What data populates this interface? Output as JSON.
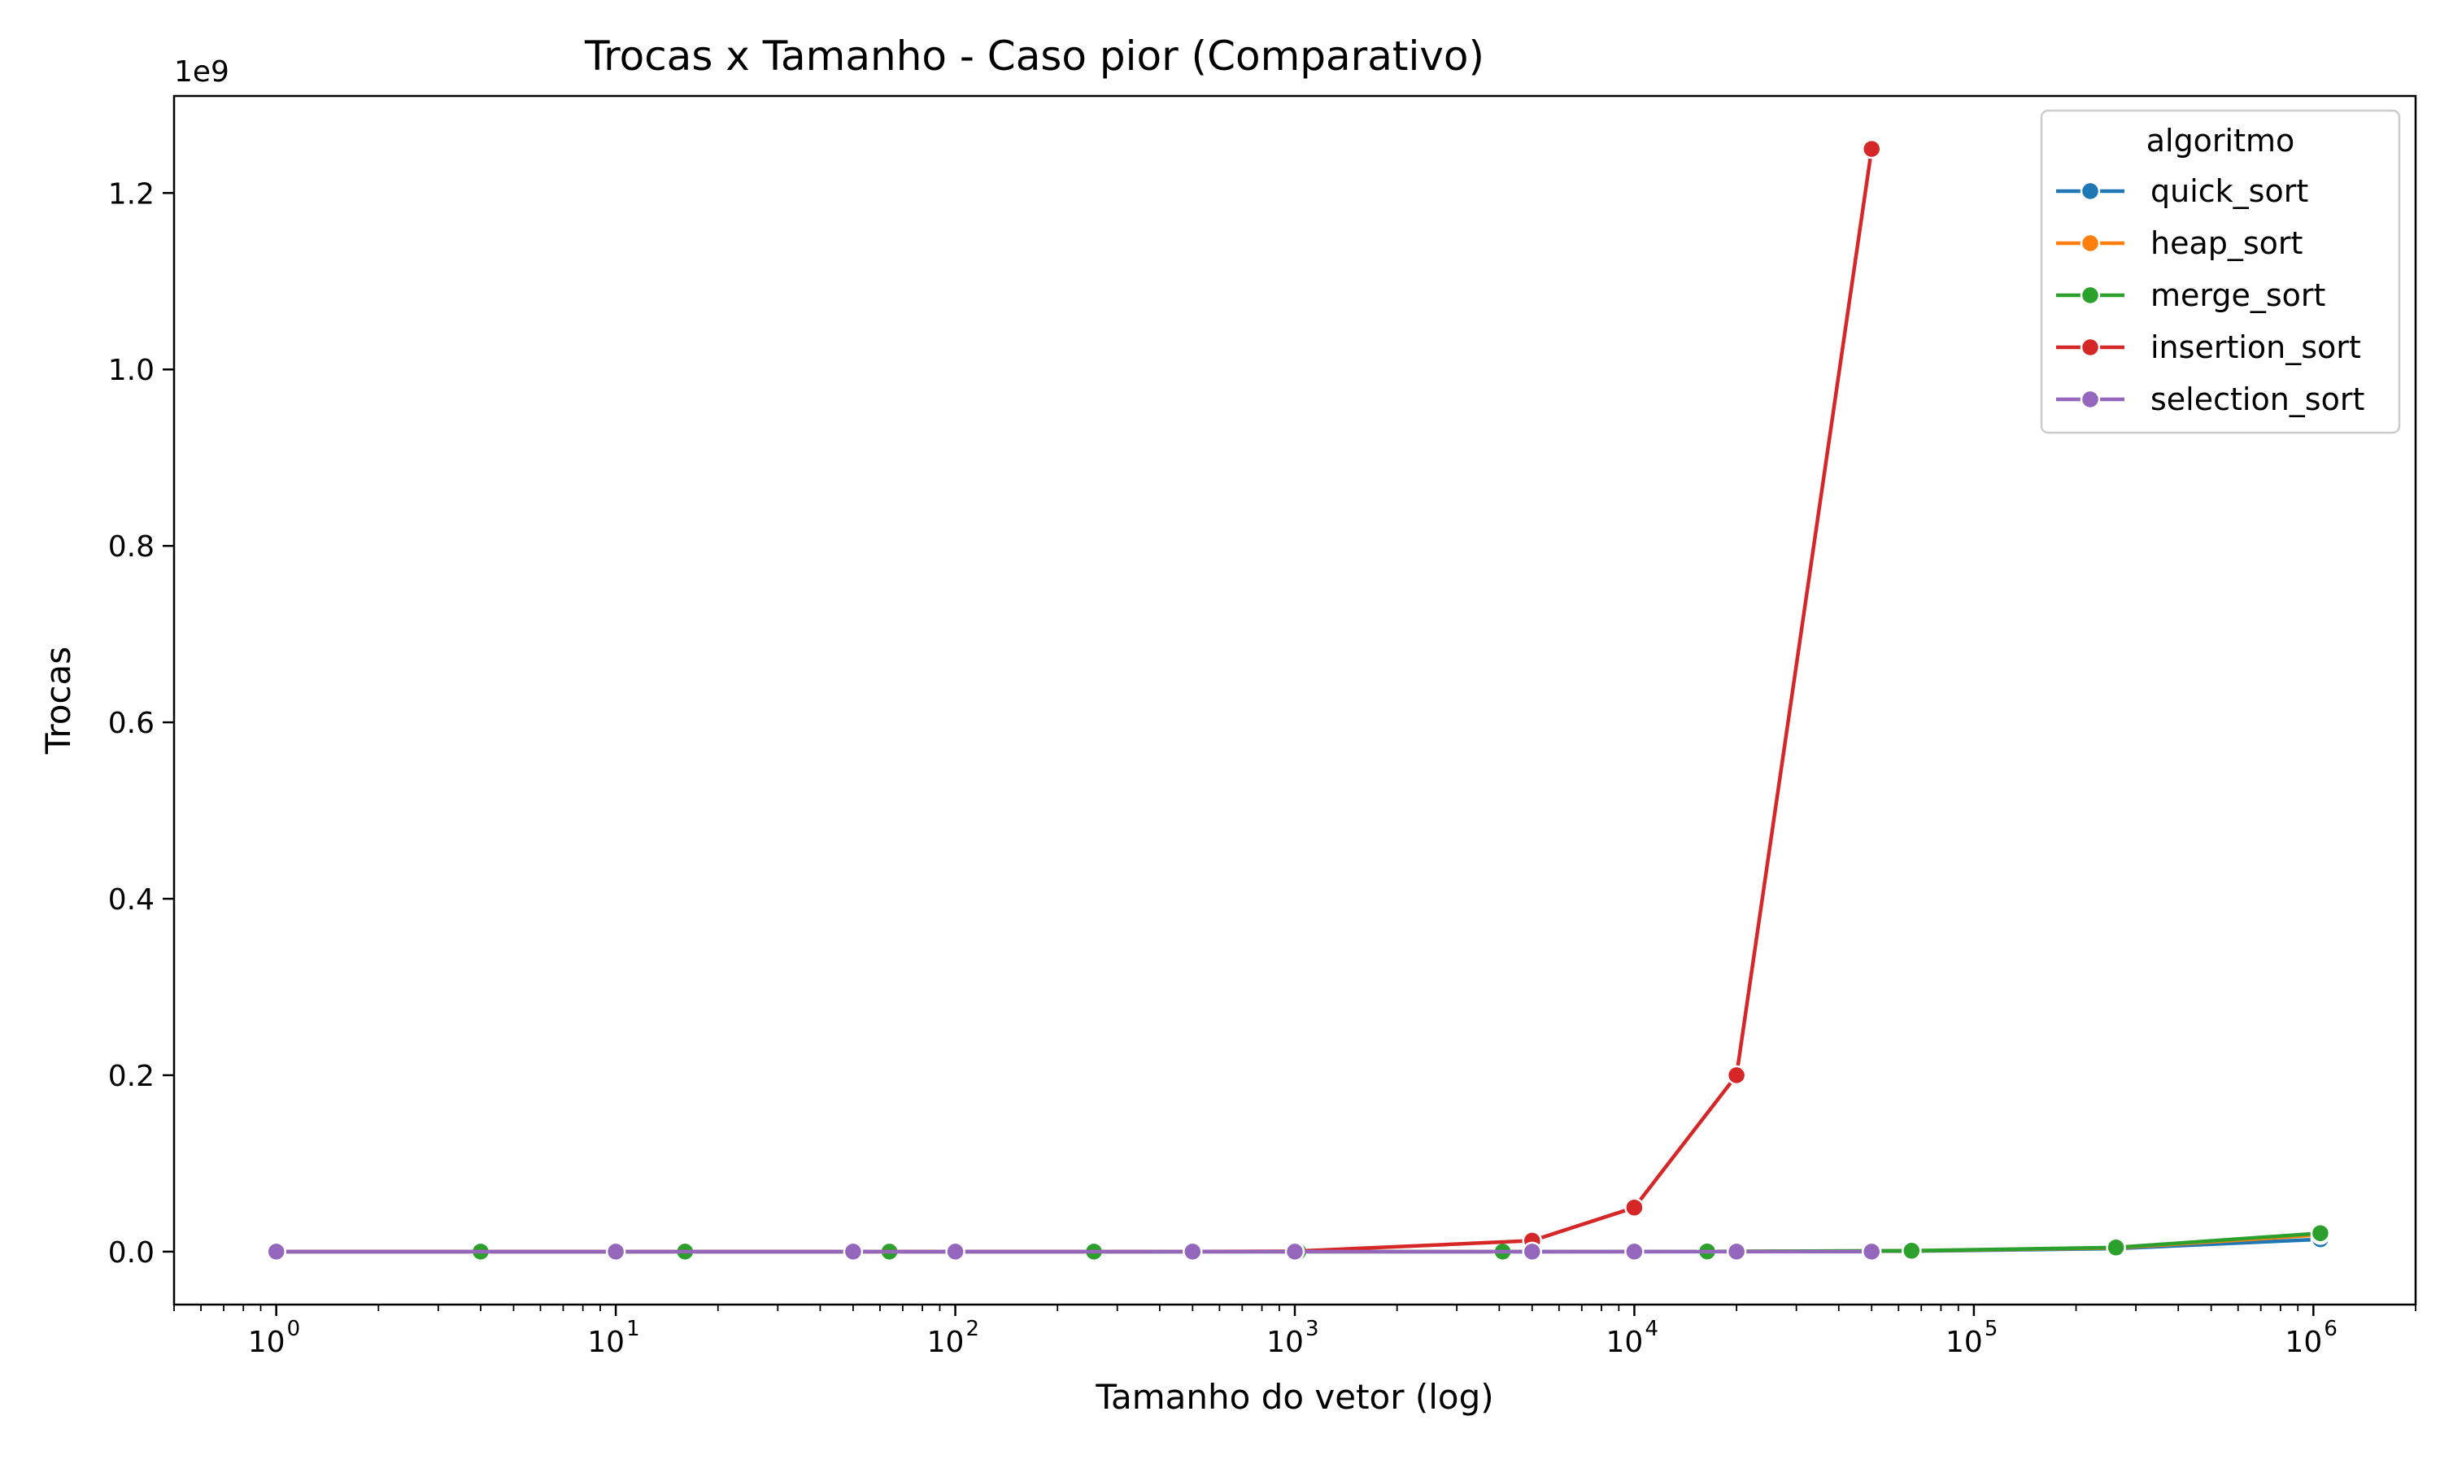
{
  "chart_data": {
    "type": "line",
    "title": "Trocas x Tamanho - Caso pior (Comparativo)",
    "xlabel": "Tamanho do vetor (log)",
    "ylabel": "Trocas",
    "x_scale": "log",
    "xlim": [
      0.5,
      2000000
    ],
    "ylim": [
      -60000000,
      1310000000
    ],
    "y_offset_label": "1e9",
    "y_multiplier": 1000000000,
    "x_ticks": [
      1,
      10,
      100,
      1000,
      10000,
      100000,
      1000000
    ],
    "x_tick_labels": [
      {
        "base": "10",
        "exp": "0"
      },
      {
        "base": "10",
        "exp": "1"
      },
      {
        "base": "10",
        "exp": "2"
      },
      {
        "base": "10",
        "exp": "3"
      },
      {
        "base": "10",
        "exp": "4"
      },
      {
        "base": "10",
        "exp": "5"
      },
      {
        "base": "10",
        "exp": "6"
      }
    ],
    "y_ticks": [
      0,
      200000000,
      400000000,
      600000000,
      800000000,
      1000000000,
      1200000000
    ],
    "y_tick_labels": [
      "0.0",
      "0.2",
      "0.4",
      "0.6",
      "0.8",
      "1.0",
      "1.2"
    ],
    "grid": false,
    "legend": {
      "title": "algoritmo",
      "position": "top-right"
    },
    "series": [
      {
        "name": "quick_sort",
        "color": "#1f77b4",
        "x": [
          1,
          4,
          16,
          64,
          256,
          1024,
          4096,
          16384,
          65536,
          262144,
          1048576
        ],
        "y": [
          0,
          3,
          30,
          200,
          1000,
          5500,
          25000,
          110000,
          600000,
          3500000,
          14000000
        ]
      },
      {
        "name": "heap_sort",
        "color": "#ff7f0e",
        "x": [
          1,
          4,
          16,
          64,
          256,
          1024,
          4096,
          16384,
          65536,
          262144,
          1048576
        ],
        "y": [
          0,
          5,
          50,
          300,
          1700,
          9000,
          45000,
          210000,
          950000,
          4300000,
          19000000
        ]
      },
      {
        "name": "merge_sort",
        "color": "#2ca02c",
        "x": [
          1,
          4,
          16,
          64,
          256,
          1024,
          4096,
          16384,
          65536,
          262144,
          1048576
        ],
        "y": [
          0,
          8,
          64,
          384,
          2048,
          10240,
          49152,
          229376,
          1048576,
          4718592,
          20971520
        ]
      },
      {
        "name": "insertion_sort",
        "color": "#d62728",
        "x": [
          1,
          10,
          50,
          100,
          500,
          1000,
          5000,
          10000,
          20000,
          50000
        ],
        "y": [
          0,
          45,
          1225,
          4950,
          124750,
          499500,
          12497500,
          49995000,
          199990000,
          1249975000
        ]
      },
      {
        "name": "selection_sort",
        "color": "#9467bd",
        "x": [
          1,
          10,
          50,
          100,
          500,
          1000,
          5000,
          10000,
          20000,
          50000
        ],
        "y": [
          0,
          9,
          49,
          99,
          499,
          999,
          4999,
          9999,
          19999,
          49999
        ]
      }
    ]
  }
}
